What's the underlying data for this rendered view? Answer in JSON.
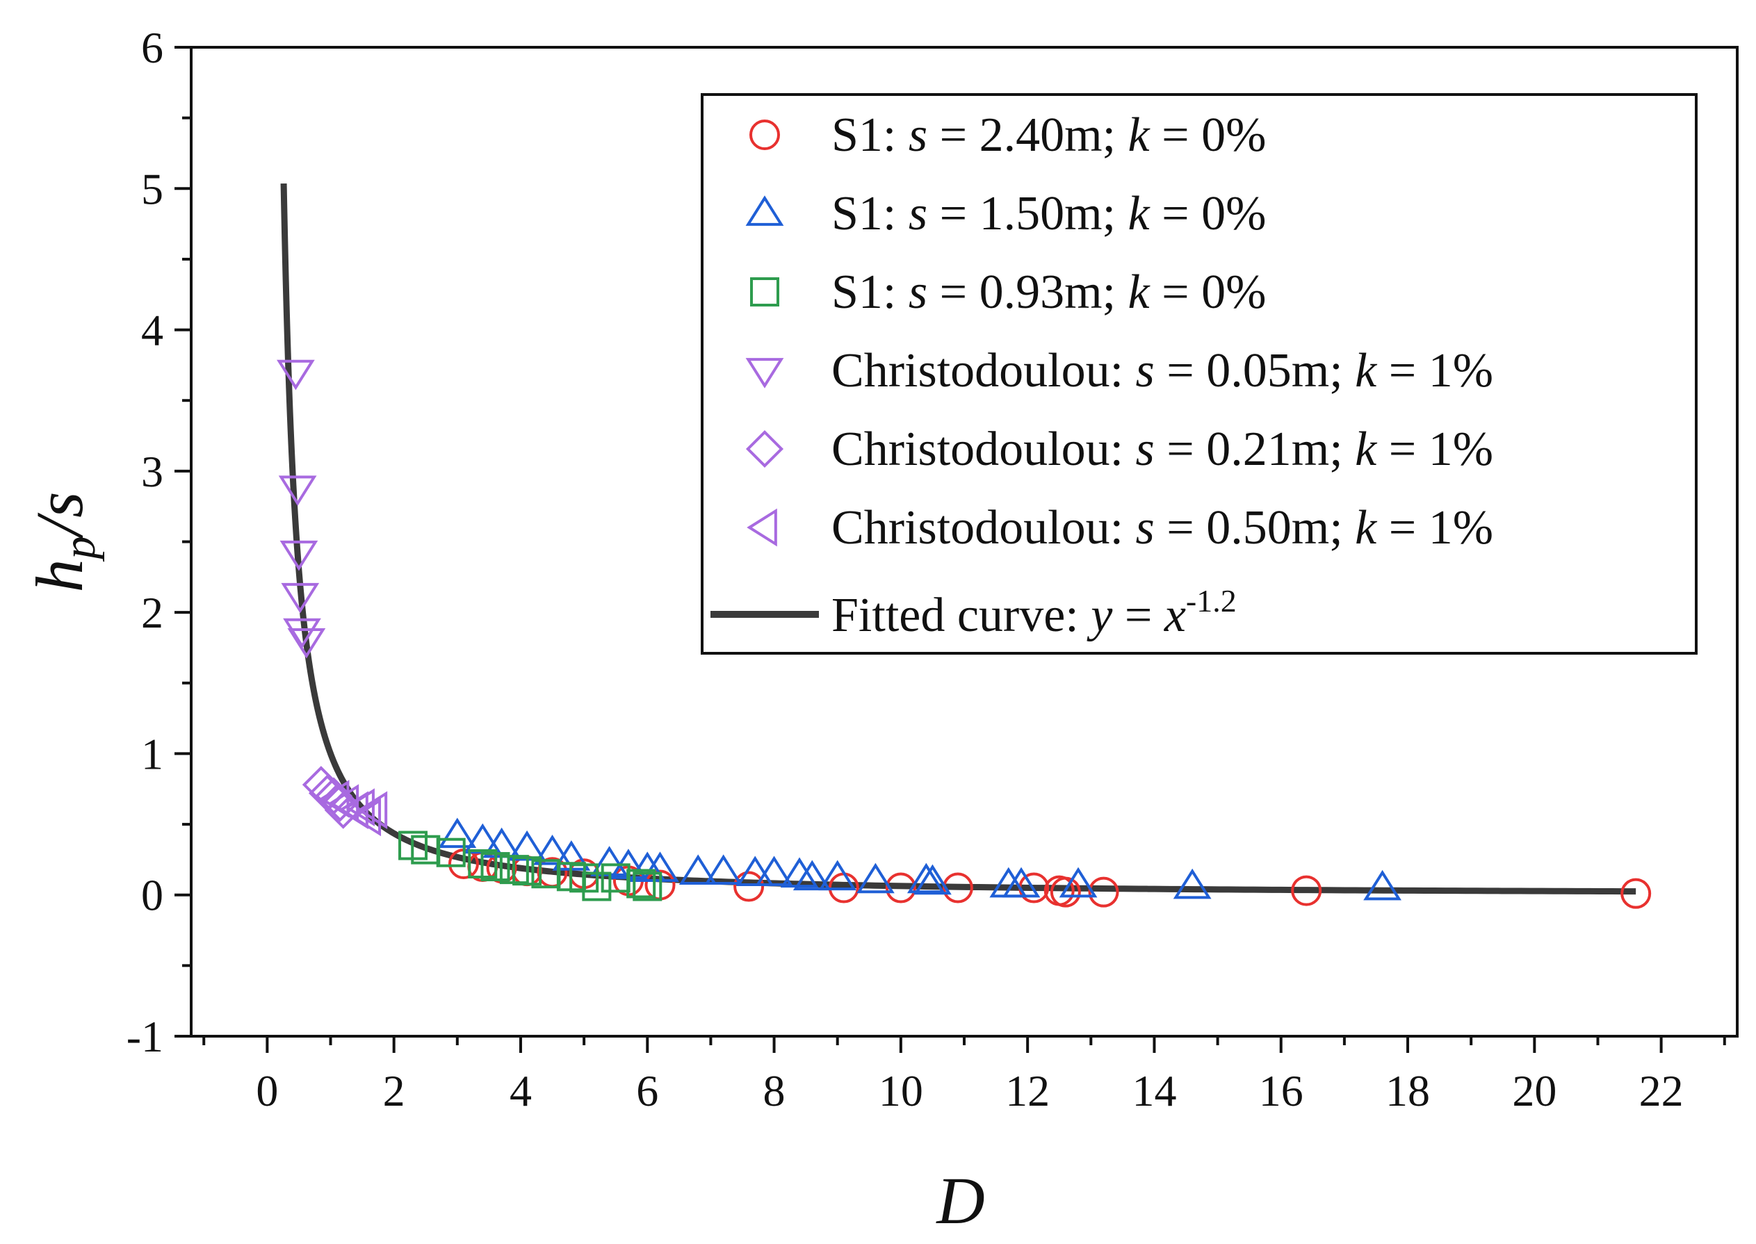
{
  "chart_data": {
    "type": "scatter",
    "title": "",
    "xlabel": "D",
    "ylabel": {
      "main": "h",
      "sub": "p",
      "tail": "/s"
    },
    "xlim": [
      -1.2,
      23.2
    ],
    "ylim": [
      -1,
      6
    ],
    "xticks": [
      0,
      2,
      4,
      6,
      8,
      10,
      12,
      14,
      16,
      18,
      20,
      22
    ],
    "yticks": [
      -1,
      0,
      1,
      2,
      3,
      4,
      5,
      6
    ],
    "x_minor_step": 1,
    "y_minor_step": 0.5,
    "grid": false,
    "legend_position": "top-right",
    "series": [
      {
        "name": "S1: s = 2.40m; k = 0%",
        "label": {
          "prefix": "S1: ",
          "s_value": " = 2.40m; ",
          "k_value": " = 0%"
        },
        "marker": "circle",
        "color": "#e8312f",
        "points": [
          [
            3.1,
            0.22
          ],
          [
            3.4,
            0.2
          ],
          [
            3.7,
            0.19
          ],
          [
            4.1,
            0.17
          ],
          [
            4.5,
            0.16
          ],
          [
            5.0,
            0.15
          ],
          [
            5.7,
            0.1
          ],
          [
            6.2,
            0.07
          ],
          [
            7.6,
            0.06
          ],
          [
            9.1,
            0.05
          ],
          [
            10.0,
            0.05
          ],
          [
            10.9,
            0.05
          ],
          [
            12.1,
            0.05
          ],
          [
            12.5,
            0.03
          ],
          [
            12.6,
            0.02
          ],
          [
            13.2,
            0.02
          ],
          [
            16.4,
            0.03
          ],
          [
            21.6,
            0.01
          ]
        ]
      },
      {
        "name": "S1: s = 1.50m; k = 0%",
        "label": {
          "prefix": "S1: ",
          "s_value": " = 1.50m; ",
          "k_value": " = 0%"
        },
        "marker": "triangle-up",
        "color": "#1f5fd6",
        "points": [
          [
            3.0,
            0.42
          ],
          [
            3.4,
            0.38
          ],
          [
            3.7,
            0.35
          ],
          [
            4.1,
            0.33
          ],
          [
            4.5,
            0.3
          ],
          [
            4.8,
            0.26
          ],
          [
            5.4,
            0.22
          ],
          [
            5.7,
            0.2
          ],
          [
            6.0,
            0.18
          ],
          [
            6.2,
            0.18
          ],
          [
            6.8,
            0.16
          ],
          [
            7.2,
            0.16
          ],
          [
            7.7,
            0.15
          ],
          [
            8.0,
            0.15
          ],
          [
            8.4,
            0.14
          ],
          [
            8.6,
            0.12
          ],
          [
            9.0,
            0.12
          ],
          [
            9.6,
            0.1
          ],
          [
            10.4,
            0.1
          ],
          [
            10.5,
            0.09
          ],
          [
            11.7,
            0.07
          ],
          [
            11.9,
            0.07
          ],
          [
            12.8,
            0.07
          ],
          [
            14.6,
            0.06
          ],
          [
            17.6,
            0.05
          ]
        ]
      },
      {
        "name": "S1: s = 0.93m; k = 0%",
        "label": {
          "prefix": "S1: ",
          "s_value": " = 0.93m; ",
          "k_value": " = 0%"
        },
        "marker": "square",
        "color": "#2e9c4e",
        "points": [
          [
            2.3,
            0.35
          ],
          [
            2.5,
            0.32
          ],
          [
            2.9,
            0.3
          ],
          [
            3.4,
            0.22
          ],
          [
            3.6,
            0.2
          ],
          [
            3.9,
            0.18
          ],
          [
            4.1,
            0.17
          ],
          [
            4.4,
            0.15
          ],
          [
            4.8,
            0.13
          ],
          [
            5.0,
            0.12
          ],
          [
            5.2,
            0.06
          ],
          [
            5.5,
            0.12
          ],
          [
            5.9,
            0.08
          ],
          [
            6.0,
            0.06
          ]
        ]
      },
      {
        "name": "Christodoulou: s = 0.05m; k = 1%",
        "label": {
          "prefix": "Christodoulou: ",
          "s_value": " = 0.05m; ",
          "k_value": " = 1%"
        },
        "marker": "triangle-down",
        "color": "#a86ae0",
        "points": [
          [
            0.45,
            3.7
          ],
          [
            0.48,
            2.88
          ],
          [
            0.5,
            2.42
          ],
          [
            0.52,
            2.12
          ],
          [
            0.55,
            1.87
          ],
          [
            0.62,
            1.8
          ]
        ]
      },
      {
        "name": "Christodoulou: s = 0.21m; k = 1%",
        "label": {
          "prefix": "Christodoulou: ",
          "s_value": " = 0.21m; ",
          "k_value": " = 1%"
        },
        "marker": "diamond",
        "color": "#a86ae0",
        "points": [
          [
            0.85,
            0.78
          ],
          [
            0.95,
            0.72
          ],
          [
            1.05,
            0.7
          ],
          [
            1.15,
            0.65
          ],
          [
            1.2,
            0.6
          ]
        ]
      },
      {
        "name": "Christodoulou: s = 0.50m; k = 1%",
        "label": {
          "prefix": "Christodoulou: ",
          "s_value": " = 0.50m; ",
          "k_value": " = 1%"
        },
        "marker": "triangle-left",
        "color": "#a86ae0",
        "points": [
          [
            1.1,
            0.68
          ],
          [
            1.25,
            0.65
          ],
          [
            1.4,
            0.6
          ],
          [
            1.5,
            0.62
          ],
          [
            1.6,
            0.55
          ],
          [
            1.7,
            0.6
          ]
        ]
      }
    ],
    "fit": {
      "name": "Fitted curve: y = x^-1.2",
      "label": {
        "prefix": "Fitted curve: ",
        "y_var": "y",
        "eq": " = ",
        "x_var": "x",
        "exponent": "-1.2"
      },
      "exponent": -1.2,
      "x_range": [
        0.26,
        21.6
      ],
      "color": "#3a3a3a"
    }
  }
}
